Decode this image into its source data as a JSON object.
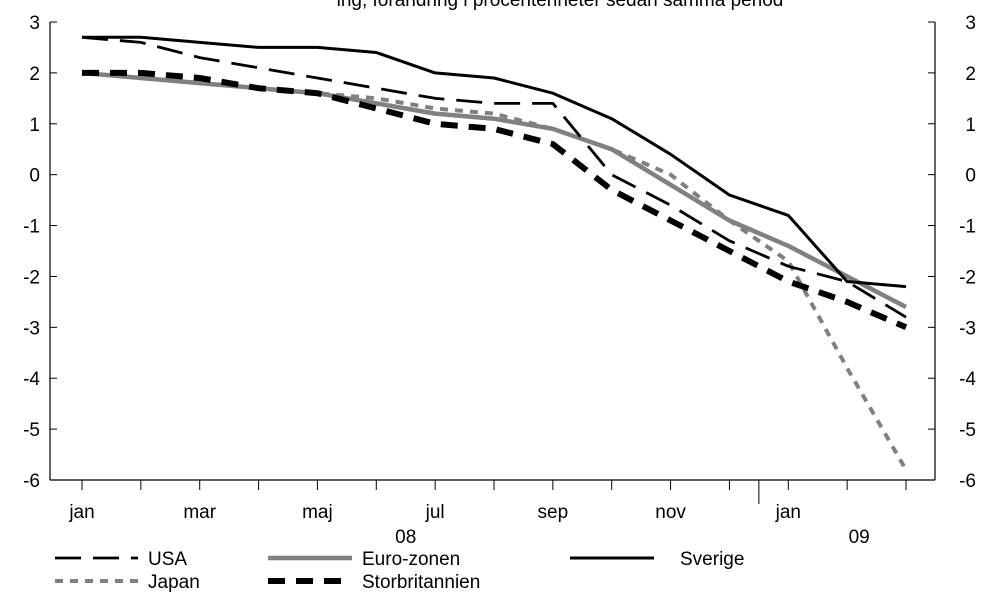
{
  "chart_data": {
    "type": "line",
    "title_partial": "ing, förändring i procentenheter sedan samma period",
    "x_tick_labels": [
      "jan",
      "mar",
      "maj",
      "jul",
      "sep",
      "nov",
      "jan"
    ],
    "year_labels": [
      "08",
      "09"
    ],
    "y_ticks": [
      3,
      2,
      1,
      0,
      -1,
      -2,
      -3,
      -4,
      -5,
      -6
    ],
    "ylim": [
      -6,
      3
    ],
    "months": [
      "2008-01",
      "2008-02",
      "2008-03",
      "2008-04",
      "2008-05",
      "2008-06",
      "2008-07",
      "2008-08",
      "2008-09",
      "2008-10",
      "2008-11",
      "2008-12",
      "2009-01",
      "2009-02",
      "2009-03"
    ],
    "series": [
      {
        "name": "USA",
        "color": "#000000",
        "style": "long-dash",
        "values": [
          2.7,
          2.6,
          2.3,
          2.1,
          1.9,
          1.7,
          1.5,
          1.4,
          1.4,
          0.0,
          -0.6,
          -1.3,
          -1.8,
          -2.1,
          -2.8
        ]
      },
      {
        "name": "Euro-zonen",
        "color": "#808080",
        "style": "solid-thick",
        "values": [
          2.0,
          1.9,
          1.8,
          1.7,
          1.6,
          1.4,
          1.2,
          1.1,
          0.9,
          0.5,
          -0.2,
          -0.9,
          -1.4,
          -2.0,
          -2.6
        ]
      },
      {
        "name": "Sverige",
        "color": "#000000",
        "style": "solid",
        "values": [
          2.7,
          2.7,
          2.6,
          2.5,
          2.5,
          2.4,
          2.0,
          1.9,
          1.6,
          1.1,
          0.4,
          -0.4,
          -0.8,
          -2.1,
          -2.2
        ]
      },
      {
        "name": "Japan",
        "color": "#808080",
        "style": "short-dash",
        "values": [
          2.0,
          1.9,
          1.8,
          1.7,
          1.6,
          1.5,
          1.3,
          1.2,
          0.9,
          0.5,
          0.0,
          -0.9,
          -1.7,
          -3.8,
          -5.8
        ]
      },
      {
        "name": "Storbritannien",
        "color": "#000000",
        "style": "thick-dash",
        "values": [
          2.0,
          2.0,
          1.9,
          1.7,
          1.6,
          1.3,
          1.0,
          0.9,
          0.6,
          -0.3,
          -0.9,
          -1.5,
          -2.1,
          -2.5,
          -3.0
        ]
      }
    ]
  }
}
